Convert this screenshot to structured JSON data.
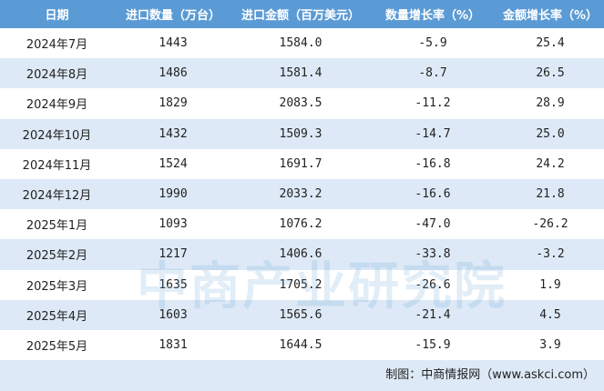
{
  "table": {
    "header": [
      "日期",
      "进口数量（万台）",
      "进口金额（百万美元）",
      "数量增长率（%）",
      "金额增长率（%）"
    ],
    "rows": [
      [
        "2024年7月",
        "1443",
        "1584.0",
        "-5.9",
        "25.4"
      ],
      [
        "2024年8月",
        "1486",
        "1581.4",
        "-8.7",
        "26.5"
      ],
      [
        "2024年9月",
        "1829",
        "2083.5",
        "-11.2",
        "28.9"
      ],
      [
        "2024年10月",
        "1432",
        "1509.3",
        "-14.7",
        "25.0"
      ],
      [
        "2024年11月",
        "1524",
        "1691.7",
        "-16.8",
        "24.2"
      ],
      [
        "2024年12月",
        "1990",
        "2033.2",
        "-16.6",
        "21.8"
      ],
      [
        "2025年1月",
        "1093",
        "1076.2",
        "-47.0",
        "-26.2"
      ],
      [
        "2025年2月",
        "1217",
        "1406.6",
        "-33.8",
        "-3.2"
      ],
      [
        "2025年3月",
        "1635",
        "1705.2",
        "-26.6",
        "1.9"
      ],
      [
        "2025年4月",
        "1603",
        "1565.6",
        "-21.4",
        "4.5"
      ],
      [
        "2025年5月",
        "1831",
        "1644.5",
        "-15.9",
        "3.9"
      ]
    ]
  },
  "watermark": "中商产业研究院",
  "footer": {
    "source": "制图：中商情报网（www.askci.com）"
  }
}
